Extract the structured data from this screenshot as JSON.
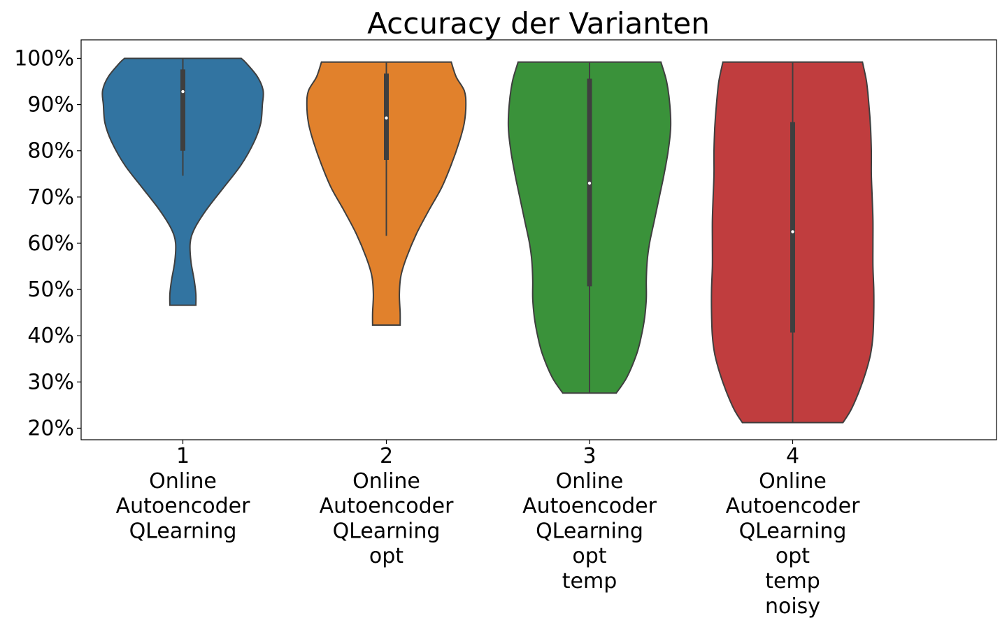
{
  "chart_data": {
    "type": "violin",
    "title": "Accuracy der Varianten",
    "xlabel": "",
    "ylabel": "",
    "ylim": [
      17.5,
      104
    ],
    "yticks": [
      20,
      30,
      40,
      50,
      60,
      70,
      80,
      90,
      100
    ],
    "ytick_format": "%",
    "grid": false,
    "legend": "none",
    "categories": [
      {
        "label_lines": [
          "1",
          "Online",
          "Autoencoder",
          "QLearning"
        ]
      },
      {
        "label_lines": [
          "2",
          "Online",
          "Autoencoder",
          "QLearning",
          "opt"
        ]
      },
      {
        "label_lines": [
          "3",
          "Online",
          "Autoencoder",
          "QLearning",
          "opt",
          "temp"
        ]
      },
      {
        "label_lines": [
          "4",
          "Online",
          "Autoencoder",
          "QLearning",
          "opt",
          "temp",
          "noisy"
        ]
      }
    ],
    "series": [
      {
        "color": "#3274a1",
        "min": 46.6,
        "q1": 80.0,
        "median": 92.8,
        "q3": 97.6,
        "max": 100.0,
        "whisker_low": 74.6,
        "whisker_high": 100.0,
        "density": [
          [
            46.6,
            0.16
          ],
          [
            49,
            0.16
          ],
          [
            52,
            0.14
          ],
          [
            56,
            0.1
          ],
          [
            60,
            0.09
          ],
          [
            63,
            0.14
          ],
          [
            67,
            0.28
          ],
          [
            72,
            0.5
          ],
          [
            77,
            0.72
          ],
          [
            82,
            0.88
          ],
          [
            86,
            0.96
          ],
          [
            90,
            0.98
          ],
          [
            93,
            0.99
          ],
          [
            96,
            0.92
          ],
          [
            99,
            0.78
          ],
          [
            100,
            0.72
          ]
        ]
      },
      {
        "color": "#e1812c",
        "min": 42.3,
        "q1": 78.0,
        "median": 87.1,
        "q3": 96.7,
        "max": 99.2,
        "whisker_low": 61.6,
        "whisker_high": 99.2,
        "density": [
          [
            42.3,
            0.17
          ],
          [
            45,
            0.17
          ],
          [
            49,
            0.16
          ],
          [
            53,
            0.18
          ],
          [
            57,
            0.25
          ],
          [
            62,
            0.37
          ],
          [
            67,
            0.52
          ],
          [
            72,
            0.68
          ],
          [
            77,
            0.8
          ],
          [
            82,
            0.9
          ],
          [
            86,
            0.96
          ],
          [
            90,
            0.98
          ],
          [
            93,
            0.96
          ],
          [
            96,
            0.86
          ],
          [
            99.2,
            0.8
          ]
        ]
      },
      {
        "color": "#3a923a",
        "min": 27.6,
        "q1": 50.7,
        "median": 73.0,
        "q3": 95.6,
        "max": 99.2,
        "whisker_low": 27.6,
        "whisker_high": 99.2,
        "density": [
          [
            27.6,
            0.33
          ],
          [
            31,
            0.46
          ],
          [
            36,
            0.58
          ],
          [
            40,
            0.64
          ],
          [
            44,
            0.68
          ],
          [
            48,
            0.7
          ],
          [
            52,
            0.7
          ],
          [
            56,
            0.71
          ],
          [
            60,
            0.74
          ],
          [
            65,
            0.8
          ],
          [
            70,
            0.86
          ],
          [
            75,
            0.92
          ],
          [
            80,
            0.97
          ],
          [
            85,
            1.0
          ],
          [
            90,
            0.99
          ],
          [
            95,
            0.95
          ],
          [
            99.2,
            0.88
          ]
        ]
      },
      {
        "color": "#c03d3e",
        "min": 21.2,
        "q1": 40.7,
        "median": 62.5,
        "q3": 86.2,
        "max": 99.2,
        "whisker_low": 21.2,
        "whisker_high": 99.2,
        "density": [
          [
            21.2,
            0.62
          ],
          [
            24,
            0.72
          ],
          [
            28,
            0.82
          ],
          [
            32,
            0.9
          ],
          [
            36,
            0.96
          ],
          [
            40,
            0.99
          ],
          [
            45,
            1.0
          ],
          [
            50,
            1.0
          ],
          [
            55,
            0.99
          ],
          [
            60,
            0.99
          ],
          [
            65,
            0.99
          ],
          [
            70,
            0.98
          ],
          [
            75,
            0.97
          ],
          [
            80,
            0.97
          ],
          [
            85,
            0.96
          ],
          [
            90,
            0.94
          ],
          [
            95,
            0.91
          ],
          [
            99.2,
            0.86
          ]
        ]
      }
    ]
  }
}
